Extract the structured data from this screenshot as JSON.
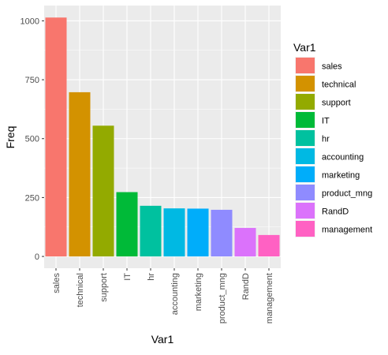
{
  "chart_data": {
    "type": "bar",
    "categories": [
      "sales",
      "technical",
      "support",
      "IT",
      "hr",
      "accounting",
      "marketing",
      "product_mng",
      "RandD",
      "management"
    ],
    "values": [
      1014,
      697,
      555,
      273,
      215,
      204,
      203,
      198,
      121,
      91
    ],
    "colors": [
      "#F8766D",
      "#D39200",
      "#93AA00",
      "#00BA38",
      "#00C19F",
      "#00B9E3",
      "#00ADFA",
      "#8F8BFF",
      "#DB72FB",
      "#FF61C3"
    ],
    "xlabel": "Var1",
    "ylabel": "Freq",
    "ylim": [
      -50,
      1065
    ],
    "yticks": [
      0,
      250,
      500,
      750,
      1000
    ],
    "grid": true,
    "legend": {
      "title": "Var1",
      "placement": "right"
    }
  }
}
